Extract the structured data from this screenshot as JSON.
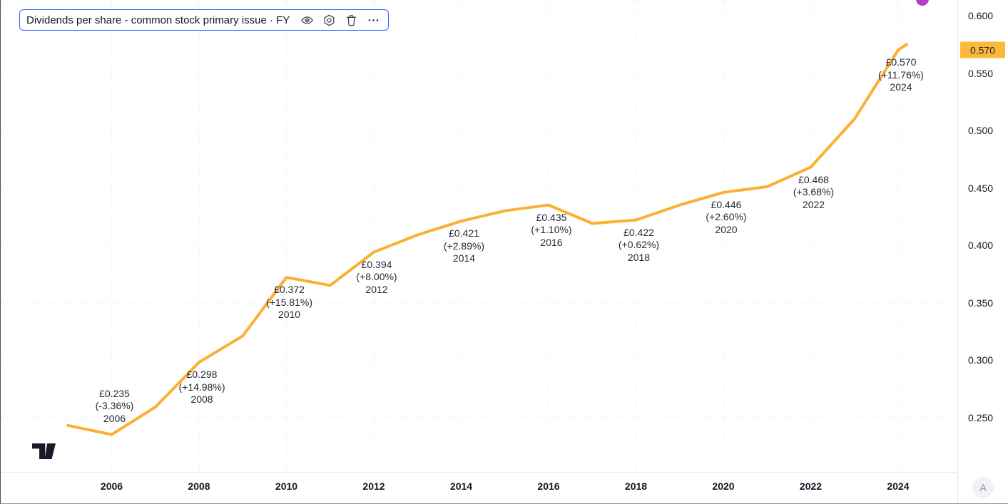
{
  "legend": {
    "title": "Dividends per share - common stock primary issue · FY",
    "buttons": [
      "eye",
      "settings",
      "trash",
      "more"
    ]
  },
  "footer": {
    "a_badge": "A"
  },
  "colors": {
    "line": "#FBB034",
    "badge_bg": "#FBB83B",
    "grid": "#e7eaf0",
    "label_text": "#252a35",
    "legend_border": "#2962ff"
  },
  "chart_data": {
    "type": "line",
    "title": "Dividends per share - common stock primary issue · FY",
    "currency": "£",
    "x": [
      2005,
      2006,
      2007,
      2008,
      2009,
      2010,
      2011,
      2012,
      2013,
      2014,
      2015,
      2016,
      2017,
      2018,
      2019,
      2020,
      2021,
      2022,
      2023,
      2024
    ],
    "values": [
      0.243,
      0.235,
      0.259,
      0.298,
      0.321,
      0.372,
      0.365,
      0.394,
      0.409,
      0.421,
      0.43,
      0.435,
      0.419,
      0.422,
      0.435,
      0.446,
      0.451,
      0.468,
      0.51,
      0.57
    ],
    "labeled_points": [
      {
        "year": 2006,
        "value_label": "£0.235",
        "change_label": "(-3.36%)",
        "side": "above"
      },
      {
        "year": 2008,
        "value_label": "£0.298",
        "change_label": "(+14.98%)",
        "side": "below"
      },
      {
        "year": 2010,
        "value_label": "£0.372",
        "change_label": "(+15.81%)",
        "side": "below"
      },
      {
        "year": 2012,
        "value_label": "£0.394",
        "change_label": "(+8.00%)",
        "side": "below"
      },
      {
        "year": 2014,
        "value_label": "£0.421",
        "change_label": "(+2.89%)",
        "side": "below"
      },
      {
        "year": 2016,
        "value_label": "£0.435",
        "change_label": "(+1.10%)",
        "side": "below"
      },
      {
        "year": 2018,
        "value_label": "£0.422",
        "change_label": "(+0.62%)",
        "side": "below"
      },
      {
        "year": 2020,
        "value_label": "£0.446",
        "change_label": "(+2.60%)",
        "side": "below"
      },
      {
        "year": 2022,
        "value_label": "£0.468",
        "change_label": "(+3.68%)",
        "side": "below"
      },
      {
        "year": 2024,
        "value_label": "£0.570",
        "change_label": "(+11.76%)",
        "side": "below"
      }
    ],
    "y_ticks": [
      0.6,
      0.55,
      0.5,
      0.45,
      0.4,
      0.35,
      0.3,
      0.25
    ],
    "x_ticks": [
      2006,
      2008,
      2010,
      2012,
      2014,
      2016,
      2018,
      2020,
      2022,
      2024
    ],
    "last_price": "0.570",
    "ylim": [
      0.228,
      0.614
    ],
    "grid": true,
    "legend_position": "top-left"
  }
}
